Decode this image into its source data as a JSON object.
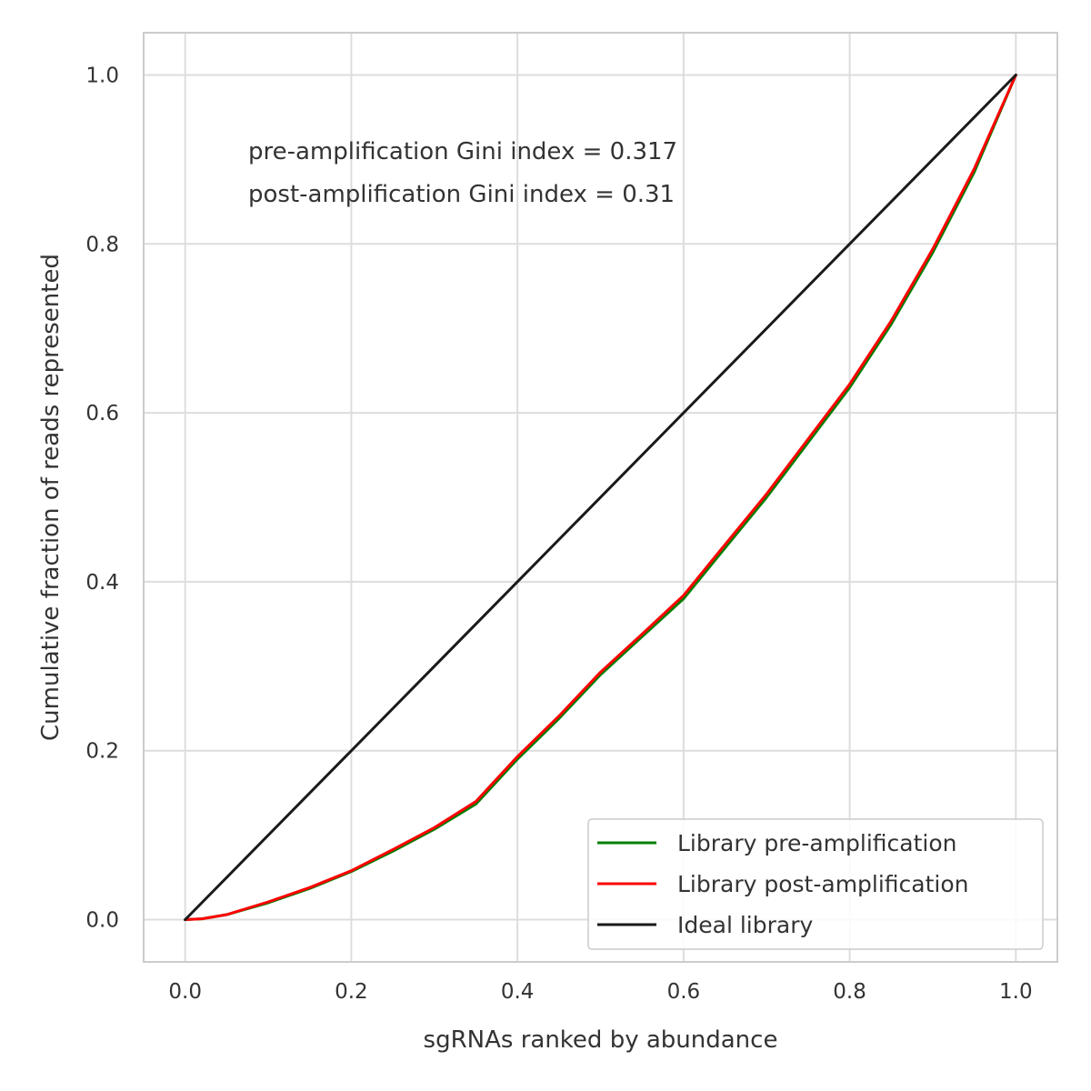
{
  "chart_data": {
    "type": "line",
    "xlabel": "sgRNAs ranked by abundance",
    "ylabel": "Cumulative fraction of reads represented",
    "xlim": [
      -0.05,
      1.05
    ],
    "ylim": [
      -0.05,
      1.05
    ],
    "x_ticks": [
      0.0,
      0.2,
      0.4,
      0.6,
      0.8,
      1.0
    ],
    "y_ticks": [
      0.0,
      0.2,
      0.4,
      0.6,
      0.8,
      1.0
    ],
    "x_tick_labels": [
      "0.0",
      "0.2",
      "0.4",
      "0.6",
      "0.8",
      "1.0"
    ],
    "y_tick_labels": [
      "0.0",
      "0.2",
      "0.4",
      "0.6",
      "0.8",
      "1.0"
    ],
    "grid": true,
    "legend_position": "lower-right",
    "annotations": [
      "pre-amplification Gini index = 0.317",
      "post-amplification Gini index = 0.31"
    ],
    "series": [
      {
        "name": "Library pre-amplification",
        "color": "#008000",
        "x": [
          0.0,
          0.02,
          0.05,
          0.1,
          0.15,
          0.2,
          0.25,
          0.3,
          0.35,
          0.4,
          0.45,
          0.5,
          0.55,
          0.6,
          0.65,
          0.7,
          0.75,
          0.8,
          0.85,
          0.9,
          0.95,
          1.0
        ],
        "y": [
          0.0,
          0.001,
          0.006,
          0.02,
          0.037,
          0.057,
          0.081,
          0.107,
          0.137,
          0.19,
          0.238,
          0.29,
          0.335,
          0.38,
          0.44,
          0.5,
          0.565,
          0.63,
          0.705,
          0.79,
          0.885,
          1.0
        ]
      },
      {
        "name": "Library post-amplification",
        "color": "#ff0000",
        "x": [
          0.0,
          0.02,
          0.05,
          0.1,
          0.15,
          0.2,
          0.25,
          0.3,
          0.35,
          0.4,
          0.45,
          0.5,
          0.55,
          0.6,
          0.65,
          0.7,
          0.75,
          0.8,
          0.85,
          0.9,
          0.95,
          1.0
        ],
        "y": [
          0.0,
          0.001,
          0.006,
          0.021,
          0.038,
          0.058,
          0.083,
          0.109,
          0.14,
          0.193,
          0.241,
          0.293,
          0.338,
          0.384,
          0.444,
          0.504,
          0.569,
          0.634,
          0.709,
          0.794,
          0.889,
          1.0
        ]
      },
      {
        "name": "Ideal library",
        "color": "#1a1a1a",
        "x": [
          0.0,
          1.0
        ],
        "y": [
          0.0,
          1.0
        ]
      }
    ]
  }
}
